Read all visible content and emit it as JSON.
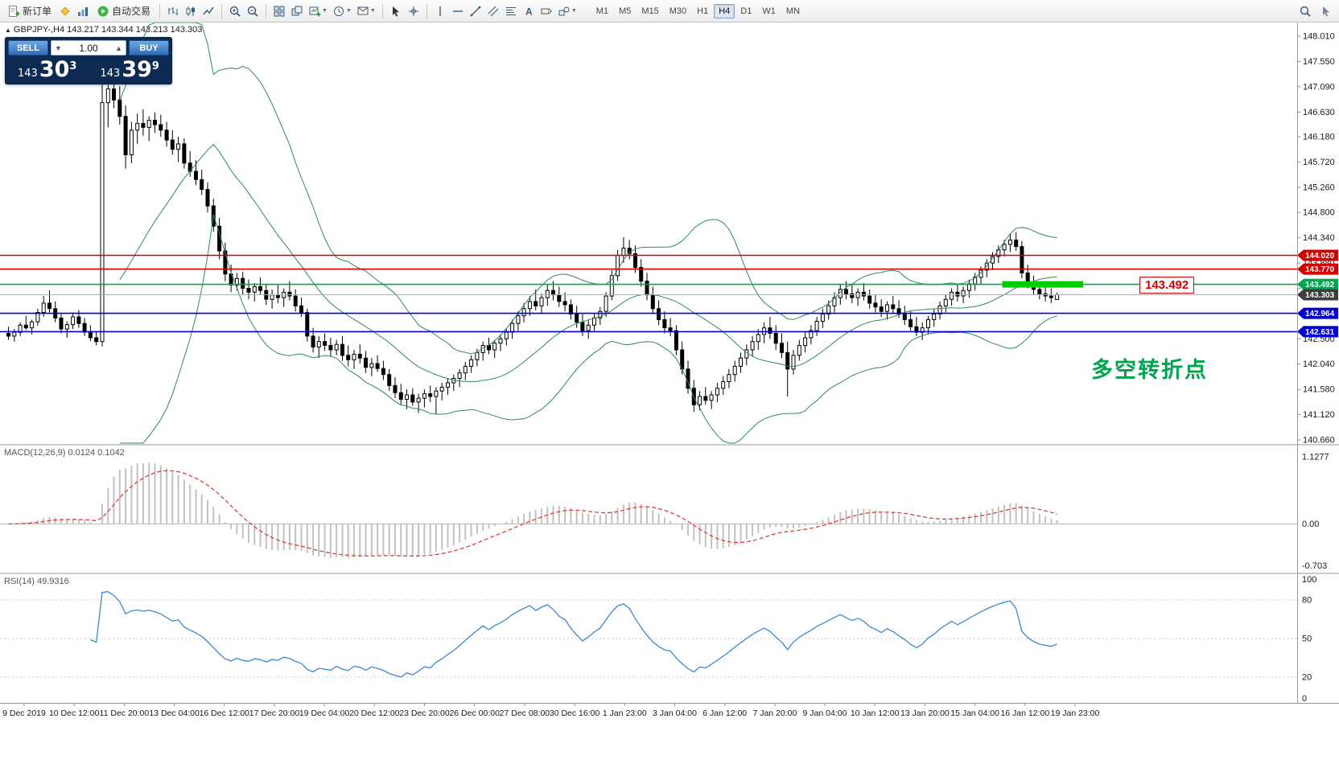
{
  "toolbar": {
    "new_order": "新订单",
    "auto_trading": "自动交易",
    "timeframes": [
      "M1",
      "M5",
      "M15",
      "M30",
      "H1",
      "H4",
      "D1",
      "W1",
      "MN"
    ],
    "active_timeframe": "H4"
  },
  "trade_panel": {
    "sell_label": "SELL",
    "buy_label": "BUY",
    "lot_value": "1.00",
    "bid_prefix": "143",
    "bid_big": "30",
    "bid_sup": "3",
    "ask_prefix": "143",
    "ask_big": "39",
    "ask_sup": "9"
  },
  "chart": {
    "symbol_info": "GBPJPY-,H4 143.217 143.344 143.213 143.303",
    "floating_price_label": "143.492",
    "annotation_text": "多空转折点",
    "price_axis_labels": [
      "148.010",
      "147.550",
      "147.090",
      "146.630",
      "146.180",
      "145.720",
      "145.260",
      "144.800",
      "144.340",
      "143.880",
      "143.420",
      "142.960",
      "142.500",
      "142.040",
      "141.580",
      "141.120",
      "140.660"
    ],
    "time_axis_labels": [
      "9 Dec 2019",
      "10 Dec 12:00",
      "11 Dec 20:00",
      "13 Dec 04:00",
      "16 Dec 12:00",
      "17 Dec 20:00",
      "19 Dec 04:00",
      "20 Dec 12:00",
      "23 Dec 20:00",
      "26 Dec 00:00",
      "27 Dec 08:00",
      "30 Dec 16:00",
      "1 Jan 23:00",
      "3 Jan 04:00",
      "6 Jan 12:00",
      "7 Jan 20:00",
      "9 Jan 04:00",
      "10 Jan 12:00",
      "13 Jan 20:00",
      "15 Jan 04:00",
      "16 Jan 12:00",
      "19 Jan 23:00"
    ],
    "hlines": [
      {
        "price": 144.02,
        "color": "#d40000",
        "width": 1.6
      },
      {
        "price": 143.77,
        "color": "#d40000",
        "width": 1.6
      },
      {
        "price": 143.492,
        "color": "#00a84f",
        "width": 1.6
      },
      {
        "price": 143.303,
        "color": "#b0b0b0",
        "width": 1
      },
      {
        "price": 142.964,
        "color": "#0000d4",
        "width": 1.6
      },
      {
        "price": 142.631,
        "color": "#0000d4",
        "width": 1.6
      }
    ],
    "price_tags": [
      {
        "label": "144.020",
        "price": 144.02,
        "color": "#d40000"
      },
      {
        "label": "143.770",
        "price": 143.77,
        "color": "#d40000"
      },
      {
        "label": "143.492",
        "price": 143.492,
        "color": "#00a84f"
      },
      {
        "label": "143.303",
        "price": 143.303,
        "color": "#3d3d3d"
      },
      {
        "label": "142.964",
        "price": 142.964,
        "color": "#0000d4"
      },
      {
        "label": "142.631",
        "price": 142.631,
        "color": "#0000d4"
      }
    ],
    "highlight_segment": {
      "price": 143.492,
      "color": "#00cc00"
    }
  },
  "chart_data": {
    "type": "candlestick",
    "symbol": "GBPJPY-",
    "timeframe": "H4",
    "title": "GBPJPY-,H4",
    "last_ohlc": {
      "open": 143.217,
      "high": 143.344,
      "low": 143.213,
      "close": 143.303
    },
    "ohlc": [
      [
        142.6,
        142.72,
        142.48,
        142.55
      ],
      [
        142.55,
        142.68,
        142.45,
        142.62
      ],
      [
        142.62,
        142.8,
        142.55,
        142.75
      ],
      [
        142.75,
        142.92,
        142.66,
        142.7
      ],
      [
        142.7,
        142.85,
        142.58,
        142.81
      ],
      [
        142.81,
        143.05,
        142.74,
        142.98
      ],
      [
        142.98,
        143.28,
        142.9,
        143.15
      ],
      [
        143.15,
        143.38,
        142.98,
        143.05
      ],
      [
        143.05,
        143.18,
        142.8,
        142.88
      ],
      [
        142.88,
        142.95,
        142.6,
        142.68
      ],
      [
        142.68,
        142.82,
        142.52,
        142.76
      ],
      [
        142.76,
        142.98,
        142.68,
        142.9
      ],
      [
        142.9,
        143.02,
        142.7,
        142.78
      ],
      [
        142.78,
        142.88,
        142.55,
        142.62
      ],
      [
        142.62,
        142.75,
        142.46,
        142.52
      ],
      [
        142.52,
        142.64,
        142.38,
        142.45
      ],
      [
        142.45,
        147.95,
        142.36,
        146.8
      ],
      [
        146.8,
        147.22,
        146.35,
        147.05
      ],
      [
        147.05,
        147.3,
        146.7,
        146.85
      ],
      [
        146.85,
        147.1,
        146.4,
        146.55
      ],
      [
        146.55,
        146.75,
        145.6,
        145.85
      ],
      [
        145.85,
        146.45,
        145.7,
        146.3
      ],
      [
        146.3,
        146.6,
        146.05,
        146.42
      ],
      [
        146.42,
        146.68,
        146.2,
        146.35
      ],
      [
        146.35,
        146.55,
        146.1,
        146.48
      ],
      [
        146.48,
        146.62,
        146.25,
        146.4
      ],
      [
        146.4,
        146.58,
        146.18,
        146.3
      ],
      [
        146.3,
        146.45,
        146.0,
        146.12
      ],
      [
        146.12,
        146.3,
        145.85,
        145.95
      ],
      [
        145.95,
        146.18,
        145.72,
        146.05
      ],
      [
        146.05,
        146.15,
        145.6,
        145.7
      ],
      [
        145.7,
        145.92,
        145.45,
        145.55
      ],
      [
        145.55,
        145.75,
        145.3,
        145.4
      ],
      [
        145.4,
        145.58,
        145.12,
        145.22
      ],
      [
        145.22,
        145.35,
        144.8,
        144.92
      ],
      [
        144.92,
        145.05,
        144.45,
        144.55
      ],
      [
        144.55,
        144.7,
        143.95,
        144.1
      ],
      [
        144.1,
        144.25,
        143.55,
        143.68
      ],
      [
        143.68,
        143.85,
        143.35,
        143.48
      ],
      [
        143.48,
        143.7,
        143.38,
        143.6
      ],
      [
        143.6,
        143.72,
        143.3,
        143.42
      ],
      [
        143.42,
        143.58,
        143.22,
        143.35
      ],
      [
        143.35,
        143.52,
        143.18,
        143.45
      ],
      [
        143.45,
        143.62,
        143.3,
        143.38
      ],
      [
        143.38,
        143.5,
        143.12,
        143.22
      ],
      [
        143.22,
        143.4,
        143.05,
        143.3
      ],
      [
        143.3,
        143.48,
        143.15,
        143.25
      ],
      [
        143.25,
        143.42,
        143.08,
        143.35
      ],
      [
        143.35,
        143.55,
        143.2,
        143.28
      ],
      [
        143.28,
        143.4,
        143.0,
        143.1
      ],
      [
        143.1,
        143.25,
        142.9,
        142.98
      ],
      [
        142.98,
        143.05,
        142.45,
        142.55
      ],
      [
        142.55,
        142.7,
        142.25,
        142.35
      ],
      [
        142.35,
        142.55,
        142.15,
        142.45
      ],
      [
        142.45,
        142.6,
        142.28,
        142.38
      ],
      [
        142.38,
        142.52,
        142.18,
        142.3
      ],
      [
        142.3,
        142.48,
        142.2,
        142.4
      ],
      [
        142.4,
        142.55,
        142.1,
        142.2
      ],
      [
        142.2,
        142.38,
        142.0,
        142.12
      ],
      [
        142.12,
        142.3,
        141.95,
        142.22
      ],
      [
        142.22,
        142.4,
        142.05,
        142.15
      ],
      [
        142.15,
        142.28,
        141.88,
        141.98
      ],
      [
        141.98,
        142.15,
        141.82,
        142.05
      ],
      [
        142.05,
        142.2,
        141.9,
        141.96
      ],
      [
        141.96,
        142.1,
        141.75,
        141.85
      ],
      [
        141.85,
        141.95,
        141.55,
        141.65
      ],
      [
        141.65,
        141.8,
        141.42,
        141.52
      ],
      [
        141.52,
        141.68,
        141.3,
        141.4
      ],
      [
        141.4,
        141.58,
        141.22,
        141.48
      ],
      [
        141.48,
        141.6,
        141.28,
        141.35
      ],
      [
        141.35,
        141.5,
        141.15,
        141.42
      ],
      [
        141.42,
        141.58,
        141.25,
        141.5
      ],
      [
        141.5,
        141.65,
        141.35,
        141.45
      ],
      [
        141.45,
        141.62,
        141.13,
        141.55
      ],
      [
        141.55,
        141.7,
        141.38,
        141.62
      ],
      [
        141.62,
        141.78,
        141.48,
        141.7
      ],
      [
        141.7,
        141.85,
        141.55,
        141.78
      ],
      [
        141.78,
        141.95,
        141.62,
        141.88
      ],
      [
        141.88,
        142.08,
        141.75,
        142.0
      ],
      [
        142.0,
        142.2,
        141.88,
        142.12
      ],
      [
        142.12,
        142.32,
        142.0,
        142.25
      ],
      [
        142.25,
        142.45,
        142.1,
        142.38
      ],
      [
        142.38,
        142.52,
        142.22,
        142.3
      ],
      [
        142.3,
        142.48,
        142.15,
        142.42
      ],
      [
        142.42,
        142.58,
        142.28,
        142.5
      ],
      [
        142.5,
        142.7,
        142.38,
        142.62
      ],
      [
        142.62,
        142.85,
        142.5,
        142.78
      ],
      [
        142.78,
        143.0,
        142.65,
        142.92
      ],
      [
        142.92,
        143.15,
        142.8,
        143.05
      ],
      [
        143.05,
        143.28,
        142.92,
        143.18
      ],
      [
        143.18,
        143.4,
        143.02,
        143.1
      ],
      [
        143.1,
        143.32,
        142.95,
        143.25
      ],
      [
        143.25,
        143.48,
        143.1,
        143.38
      ],
      [
        143.38,
        143.55,
        143.2,
        143.3
      ],
      [
        143.3,
        143.45,
        143.08,
        143.18
      ],
      [
        143.18,
        143.35,
        143.0,
        143.12
      ],
      [
        143.12,
        143.22,
        142.85,
        142.95
      ],
      [
        142.95,
        143.1,
        142.7,
        142.8
      ],
      [
        142.8,
        142.95,
        142.55,
        142.65
      ],
      [
        142.65,
        142.85,
        142.5,
        142.75
      ],
      [
        142.75,
        142.95,
        142.62,
        142.88
      ],
      [
        142.88,
        143.08,
        142.75,
        143.0
      ],
      [
        143.0,
        143.35,
        142.9,
        143.28
      ],
      [
        143.28,
        143.75,
        143.2,
        143.65
      ],
      [
        143.65,
        144.12,
        143.55,
        144.02
      ],
      [
        144.02,
        144.35,
        143.88,
        144.15
      ],
      [
        144.15,
        144.3,
        143.95,
        144.05
      ],
      [
        144.05,
        144.2,
        143.7,
        143.8
      ],
      [
        143.8,
        143.95,
        143.45,
        143.55
      ],
      [
        143.55,
        143.7,
        143.2,
        143.3
      ],
      [
        143.3,
        143.45,
        142.95,
        143.05
      ],
      [
        143.05,
        143.2,
        142.75,
        142.85
      ],
      [
        142.85,
        143.0,
        142.6,
        142.7
      ],
      [
        142.7,
        142.88,
        142.55,
        142.65
      ],
      [
        142.65,
        142.75,
        142.2,
        142.3
      ],
      [
        142.3,
        142.45,
        141.85,
        141.95
      ],
      [
        141.95,
        142.1,
        141.5,
        141.6
      ],
      [
        141.6,
        141.75,
        141.17,
        141.3
      ],
      [
        141.3,
        141.55,
        141.2,
        141.45
      ],
      [
        141.45,
        141.62,
        141.3,
        141.38
      ],
      [
        141.38,
        141.55,
        141.22,
        141.48
      ],
      [
        141.48,
        141.7,
        141.35,
        141.6
      ],
      [
        141.6,
        141.82,
        141.48,
        141.72
      ],
      [
        141.72,
        141.95,
        141.6,
        141.85
      ],
      [
        141.85,
        142.1,
        141.72,
        142.0
      ],
      [
        142.0,
        142.25,
        141.88,
        142.15
      ],
      [
        142.15,
        142.4,
        142.02,
        142.3
      ],
      [
        142.3,
        142.55,
        142.18,
        142.45
      ],
      [
        142.45,
        142.68,
        142.3,
        142.58
      ],
      [
        142.58,
        142.8,
        142.42,
        142.7
      ],
      [
        142.7,
        142.9,
        142.5,
        142.6
      ],
      [
        142.6,
        142.75,
        142.3,
        142.42
      ],
      [
        142.42,
        142.6,
        142.15,
        142.25
      ],
      [
        142.25,
        142.45,
        141.45,
        141.95
      ],
      [
        141.95,
        142.3,
        141.85,
        142.2
      ],
      [
        142.2,
        142.48,
        142.1,
        142.38
      ],
      [
        142.38,
        142.62,
        142.25,
        142.52
      ],
      [
        142.52,
        142.75,
        142.4,
        142.65
      ],
      [
        142.65,
        142.9,
        142.55,
        142.82
      ],
      [
        142.82,
        143.05,
        142.7,
        142.95
      ],
      [
        142.95,
        143.2,
        142.85,
        143.1
      ],
      [
        143.1,
        143.35,
        142.98,
        143.25
      ],
      [
        143.25,
        143.5,
        143.12,
        143.4
      ],
      [
        143.4,
        143.55,
        143.22,
        143.32
      ],
      [
        143.32,
        143.48,
        143.15,
        143.25
      ],
      [
        143.25,
        143.42,
        143.1,
        143.35
      ],
      [
        143.35,
        143.52,
        143.2,
        143.28
      ],
      [
        143.28,
        143.4,
        143.05,
        143.15
      ],
      [
        143.15,
        143.3,
        142.98,
        143.08
      ],
      [
        143.08,
        143.22,
        142.9,
        143.0
      ],
      [
        143.0,
        143.18,
        142.85,
        143.12
      ],
      [
        143.12,
        143.28,
        142.95,
        143.05
      ],
      [
        143.05,
        143.2,
        142.88,
        142.95
      ],
      [
        142.95,
        143.1,
        142.75,
        142.85
      ],
      [
        142.85,
        143.0,
        142.65,
        142.72
      ],
      [
        142.72,
        142.9,
        142.55,
        142.62
      ],
      [
        142.62,
        142.8,
        142.48,
        142.7
      ],
      [
        142.7,
        142.92,
        142.58,
        142.85
      ],
      [
        142.85,
        143.05,
        142.72,
        142.95
      ],
      [
        142.95,
        143.18,
        142.85,
        143.1
      ],
      [
        143.1,
        143.3,
        142.98,
        143.22
      ],
      [
        143.22,
        143.42,
        143.1,
        143.35
      ],
      [
        143.35,
        143.5,
        143.18,
        143.28
      ],
      [
        143.28,
        143.45,
        143.15,
        143.38
      ],
      [
        143.38,
        143.58,
        143.25,
        143.5
      ],
      [
        143.5,
        143.7,
        143.38,
        143.62
      ],
      [
        143.62,
        143.82,
        143.5,
        143.75
      ],
      [
        143.75,
        143.95,
        143.62,
        143.88
      ],
      [
        143.88,
        144.08,
        143.75,
        144.0
      ],
      [
        144.0,
        144.2,
        143.88,
        144.12
      ],
      [
        144.12,
        144.3,
        144.0,
        144.22
      ],
      [
        144.22,
        144.42,
        144.08,
        144.3
      ],
      [
        144.3,
        144.44,
        144.1,
        144.18
      ],
      [
        144.18,
        144.28,
        143.6,
        143.7
      ],
      [
        143.7,
        143.85,
        143.42,
        143.52
      ],
      [
        143.52,
        143.65,
        143.3,
        143.4
      ],
      [
        143.4,
        143.55,
        143.22,
        143.32
      ],
      [
        143.32,
        143.48,
        143.18,
        143.28
      ],
      [
        143.28,
        143.42,
        143.15,
        143.25
      ],
      [
        143.217,
        143.344,
        143.213,
        143.303
      ]
    ],
    "bollinger": {
      "period": 20,
      "deviation": 2,
      "color": "#2e8b57"
    },
    "macd": {
      "label": "MACD(12,26,9) 0.0124 0.1042",
      "params": [
        12,
        26,
        9
      ],
      "current_values": [
        0.0124,
        0.1042
      ],
      "scale_labels": [
        {
          "text": "1.1277",
          "value": 1.1277
        },
        {
          "text": "0.00",
          "value": 0
        },
        {
          "text": "-0.703",
          "value": -0.703
        }
      ]
    },
    "rsi": {
      "label": "RSI(14) 49.9316",
      "period": 14,
      "current_value": 49.9316,
      "levels": [
        100,
        80,
        50,
        20,
        0
      ],
      "dotted_levels": [
        80,
        50,
        20
      ]
    }
  }
}
